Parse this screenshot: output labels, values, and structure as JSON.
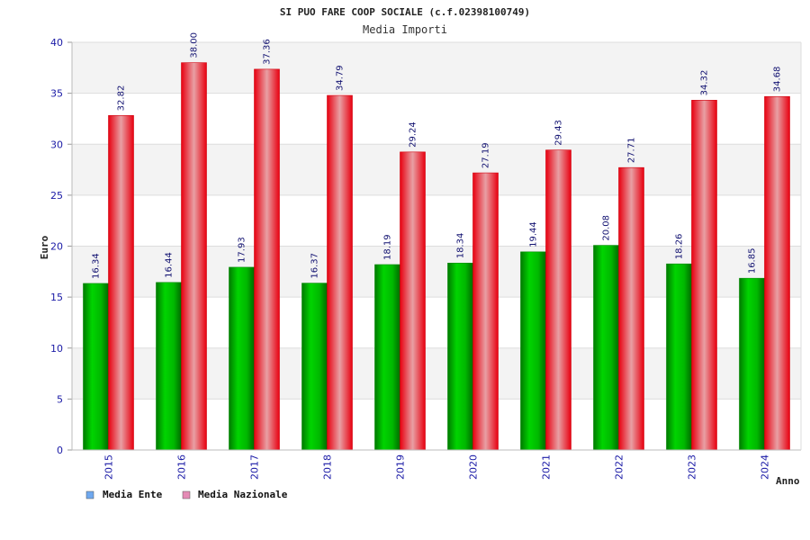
{
  "chart_data": {
    "type": "bar",
    "title": "SI PUO FARE COOP SOCIALE (c.f.02398100749)",
    "subtitle": "Media Importi",
    "xlabel": "Anno",
    "ylabel": "Euro",
    "ylim": [
      0,
      40
    ],
    "yticks": [
      0,
      5,
      10,
      15,
      20,
      25,
      30,
      35,
      40
    ],
    "grid": true,
    "legend_position": "bottom-left",
    "categories": [
      "2015",
      "2016",
      "2017",
      "2018",
      "2019",
      "2020",
      "2021",
      "2022",
      "2023",
      "2024"
    ],
    "series": [
      {
        "name": "Media Ente",
        "color": "#00b000",
        "legend_color": "#6fa8ef",
        "values": [
          16.34,
          16.44,
          17.93,
          16.37,
          18.19,
          18.34,
          19.44,
          20.08,
          18.26,
          16.85
        ],
        "labels": [
          "16.34",
          "16.44",
          "17.93",
          "16.37",
          "18.19",
          "18.34",
          "19.44",
          "20.08",
          "18.26",
          "16.85"
        ]
      },
      {
        "name": "Media Nazionale",
        "color": "#f0101c",
        "legend_color": "#e58bb5",
        "values": [
          32.82,
          38.0,
          37.36,
          34.79,
          29.24,
          27.19,
          29.43,
          27.71,
          34.32,
          34.68
        ],
        "labels": [
          "32.82",
          "38.00",
          "37.36",
          "34.79",
          "29.24",
          "27.19",
          "29.43",
          "27.71",
          "34.32",
          "34.68"
        ]
      }
    ]
  }
}
